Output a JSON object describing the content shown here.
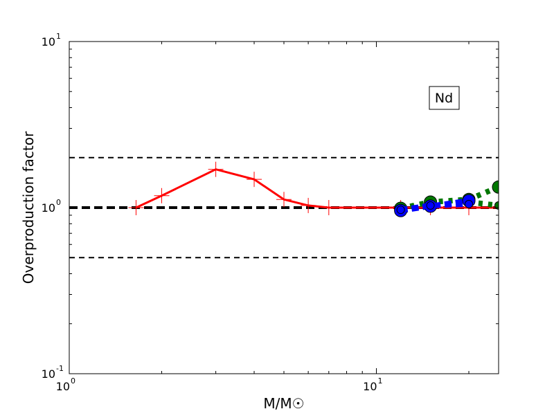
{
  "chart_data": {
    "type": "line",
    "xlabel": "M/M☉",
    "ylabel": "Overproduction factor",
    "xscale": "log",
    "yscale": "log",
    "xlim": [
      1,
      25
    ],
    "ylim": [
      0.1,
      10
    ],
    "x_ticks": [
      {
        "v": 1,
        "base": "10",
        "exp": "0"
      },
      {
        "v": 10,
        "base": "10",
        "exp": "1"
      }
    ],
    "y_ticks": [
      {
        "v": 0.1,
        "base": "10",
        "exp": "-1"
      },
      {
        "v": 1,
        "base": "10",
        "exp": "0"
      },
      {
        "v": 10,
        "base": "10",
        "exp": "1"
      }
    ],
    "annotation": "Nd",
    "reference_lines": [
      {
        "y": 2,
        "style": "dashed",
        "color": "#000000",
        "width": "thin"
      },
      {
        "y": 1,
        "style": "dashed",
        "color": "#000000",
        "width": "thick"
      },
      {
        "y": 0.5,
        "style": "dashed",
        "color": "#000000",
        "width": "thin"
      }
    ],
    "series": [
      {
        "color": "#ff0000",
        "style": "solid",
        "marker": "plus",
        "x": [
          1.65,
          2,
          3,
          4,
          5,
          6,
          7,
          12,
          15,
          20,
          25
        ],
        "y": [
          1.0,
          1.18,
          1.7,
          1.48,
          1.12,
          1.03,
          1.0,
          1.0,
          1.0,
          1.0,
          1.0
        ]
      },
      {
        "color": "#007700",
        "style": "dotted",
        "marker": "circle",
        "x": [
          12,
          15,
          20,
          25
        ],
        "y": [
          0.99,
          1.08,
          1.12,
          1.33
        ]
      },
      {
        "color": "#007700",
        "style": "dotted",
        "marker": "circle-small",
        "x": [
          20,
          25
        ],
        "y": [
          1.08,
          1.03
        ]
      },
      {
        "color": "#0000ff",
        "style": "dashed",
        "marker": "circle",
        "x": [
          12,
          15,
          20
        ],
        "y": [
          0.96,
          1.02,
          1.1
        ]
      },
      {
        "color": "#0000ff",
        "style": "dashed",
        "marker": "circle-small",
        "x": [
          12,
          15,
          20
        ],
        "y": [
          0.97,
          1.03,
          1.05
        ]
      }
    ]
  }
}
